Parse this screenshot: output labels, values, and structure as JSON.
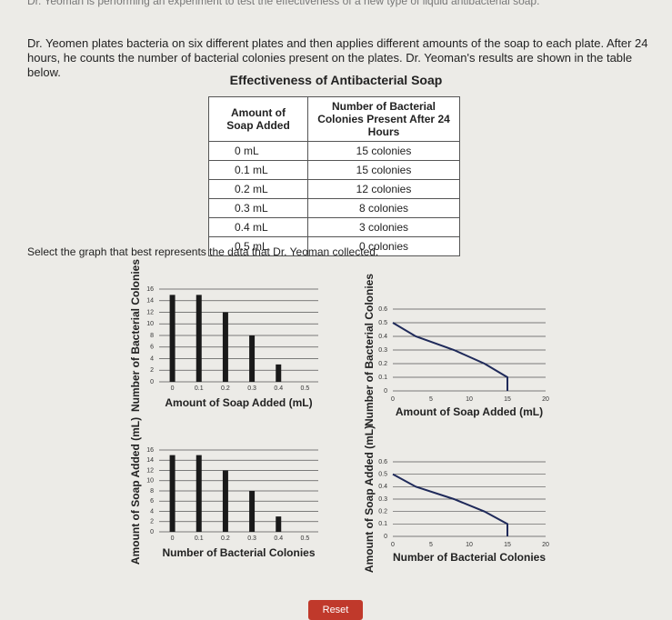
{
  "header": {
    "intro": "Dr. Yeoman is performing an experiment to test the effectiveness of a new type of liquid antibacterial soap.",
    "paragraph": "Dr. Yeomen plates bacteria on six different plates and then applies different amounts of the soap to each plate. After 24 hours, he counts the number of bacterial colonies present on the plates. Dr. Yeoman's results are shown in the table below."
  },
  "table": {
    "title": "Effectiveness of Antibacterial Soap",
    "columns": [
      "Amount of Soap Added",
      "Number of Bacterial Colonies Present After 24 Hours"
    ],
    "rows": [
      [
        "0 mL",
        "15 colonies"
      ],
      [
        "0.1 mL",
        "15 colonies"
      ],
      [
        "0.2 mL",
        "12 colonies"
      ],
      [
        "0.3 mL",
        "8 colonies"
      ],
      [
        "0.4 mL",
        "3 colonies"
      ],
      [
        "0.5 mL",
        "0 colonies"
      ]
    ]
  },
  "prompt": "Select the graph that best represents the data that Dr. Yeoman collected.",
  "chart_data": [
    {
      "type": "bar",
      "y_label": "Number of Bacterial Colonies",
      "x_label": "Amount of Soap Added (mL)",
      "categories": [
        "0",
        "0.1",
        "0.2",
        "0.3",
        "0.4",
        "0.5"
      ],
      "values": [
        15,
        15,
        12,
        8,
        3,
        0
      ],
      "ylim": [
        0,
        16
      ],
      "yticks": [
        0,
        2,
        4,
        6,
        8,
        10,
        12,
        14,
        16
      ],
      "grid": true,
      "color": "#1a1a1a"
    },
    {
      "type": "line",
      "y_label": "Number of Bacterial Colonies",
      "x_label": "Amount of Soap Added (mL)",
      "x": [
        0,
        3,
        8,
        12,
        15,
        15
      ],
      "values": [
        0.5,
        0.4,
        0.3,
        0.2,
        0.1,
        0
      ],
      "xlim": [
        0,
        20
      ],
      "xticks": [
        0,
        5,
        10,
        15,
        20
      ],
      "ylim": [
        0,
        0.6
      ],
      "yticks": [
        0,
        0.1,
        0.2,
        0.3,
        0.4,
        0.5,
        0.6
      ],
      "grid": true,
      "color": "#1f2a5a"
    },
    {
      "type": "bar",
      "y_label": "Amount of Soap Added (mL)",
      "x_label": "Number of Bacterial Colonies",
      "categories": [
        "0",
        "0.1",
        "0.2",
        "0.3",
        "0.4",
        "0.5"
      ],
      "values": [
        15,
        15,
        12,
        8,
        3,
        0
      ],
      "ylim": [
        0,
        16
      ],
      "yticks": [
        0,
        2,
        4,
        6,
        8,
        10,
        12,
        14,
        16
      ],
      "grid": true,
      "color": "#1a1a1a"
    },
    {
      "type": "line",
      "y_label": "Amount of Soap Added (mL)",
      "x_label": "Number of Bacterial Colonies",
      "x": [
        0,
        3,
        8,
        12,
        15,
        15
      ],
      "values": [
        0.5,
        0.4,
        0.3,
        0.2,
        0.1,
        0
      ],
      "xlim": [
        0,
        20
      ],
      "xticks": [
        0,
        5,
        10,
        15,
        20
      ],
      "ylim": [
        0,
        0.6
      ],
      "yticks": [
        0,
        0.1,
        0.2,
        0.3,
        0.4,
        0.5,
        0.6
      ],
      "grid": true,
      "color": "#1f2a5a"
    }
  ],
  "reset_button": "Reset"
}
